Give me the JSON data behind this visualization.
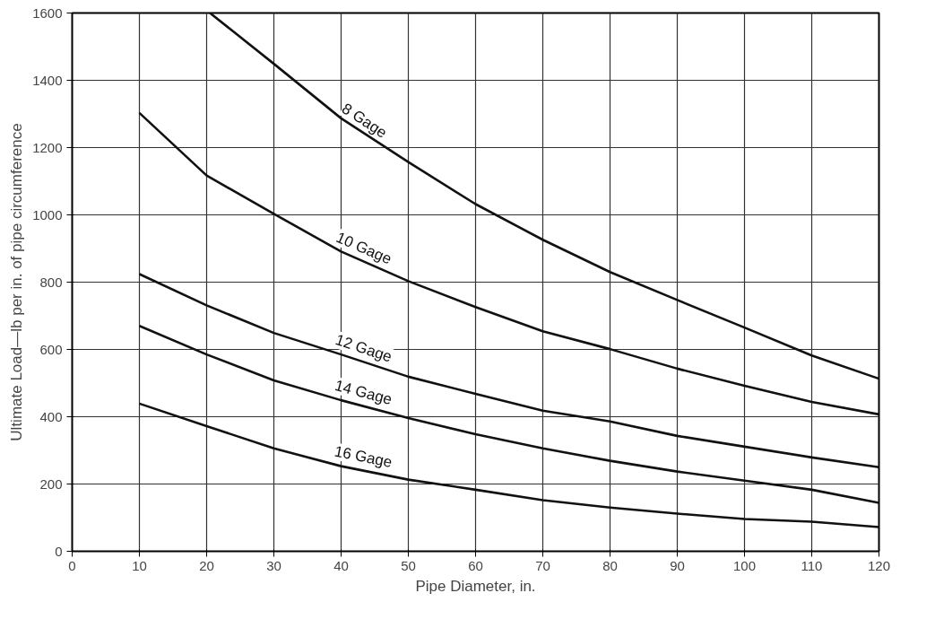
{
  "chart_data": {
    "type": "line",
    "xlabel": "Pipe Diameter, in.",
    "ylabel": "Ultimate Load—lb per in. of pipe circumference",
    "xlim": [
      0,
      120
    ],
    "ylim": [
      0,
      1600
    ],
    "xticks": [
      0,
      10,
      20,
      30,
      40,
      50,
      60,
      70,
      80,
      90,
      100,
      110,
      120
    ],
    "yticks": [
      0,
      200,
      400,
      600,
      800,
      1000,
      1200,
      1400,
      1600
    ],
    "grid": true,
    "marker": "none",
    "line_style": "solid",
    "series": [
      {
        "name": "8 Gage",
        "color": "#111111",
        "x": [
          20.5,
          30,
          40,
          50,
          60,
          70,
          80,
          90,
          100,
          110,
          120
        ],
        "values": [
          1600,
          1449,
          1287,
          1157,
          1032,
          926,
          830,
          747,
          665,
          582,
          513
        ]
      },
      {
        "name": "10 Gage",
        "color": "#111111",
        "x": [
          10,
          20,
          30,
          40,
          50,
          60,
          70,
          80,
          90,
          100,
          110,
          120
        ],
        "values": [
          1303,
          1117,
          1003,
          891,
          803,
          726,
          654,
          601,
          543,
          492,
          444,
          407
        ]
      },
      {
        "name": "12 Gage",
        "color": "#111111",
        "x": [
          10,
          20,
          30,
          40,
          50,
          60,
          70,
          80,
          90,
          100,
          110,
          120
        ],
        "values": [
          824,
          731,
          649,
          585,
          519,
          468,
          418,
          386,
          343,
          311,
          279,
          250
        ]
      },
      {
        "name": "14 Gage",
        "color": "#111111",
        "x": [
          10,
          20,
          30,
          40,
          50,
          60,
          70,
          80,
          90,
          100,
          110,
          120
        ],
        "values": [
          670,
          585,
          508,
          449,
          396,
          348,
          306,
          269,
          237,
          210,
          183,
          144
        ]
      },
      {
        "name": "16 Gage",
        "color": "#111111",
        "x": [
          10,
          20,
          30,
          40,
          50,
          60,
          70,
          80,
          90,
          100,
          110,
          120
        ],
        "values": [
          439,
          372,
          306,
          253,
          213,
          183,
          152,
          130,
          112,
          96,
          88,
          72
        ]
      }
    ]
  }
}
